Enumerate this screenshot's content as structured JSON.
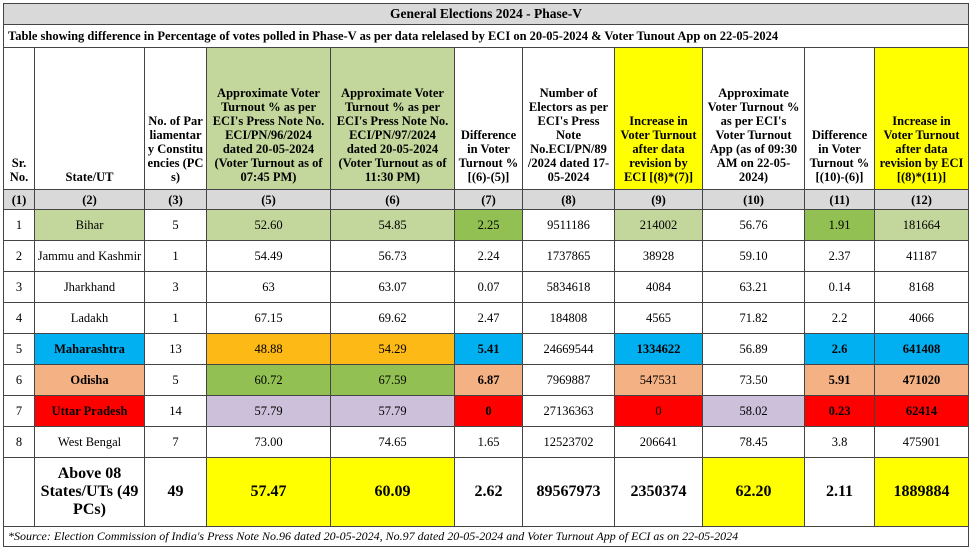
{
  "title": "General Elections 2024 - Phase-V",
  "subtitle": "Table showing difference in Percentage of votes polled in Phase-V as per data relelased by ECI on 20-05-2024 & Voter Tunout App on 22-05-2024",
  "headers": [
    "Sr. No.",
    "State/UT",
    "No. of Parliamentary Constituencies (PCs)",
    "Approximate Voter Turnout % as per ECI's Press Note No. ECI/PN/96/2024 dated 20-05-2024 (Voter Turnout as of 07:45 PM)",
    "Approximate Voter Turnout % as per ECI's Press Note No. ECI/PN/97/2024 dated 20-05-2024 (Voter Turnout as of 11:30 PM)",
    "Difference in Voter Turnout % [(6)-(5)]",
    "Number of Electors as per ECI's Press Note No.ECI/PN/89 /2024 dated 17-05-2024",
    "Increase in Voter Turnout after data revision by ECI [(8)*(7)]",
    "Approximate Voter Turnout % as per ECI's Voter Turnout App (as of 09:30 AM on 22-05-2024)",
    "Difference in Voter Turnout % [(10)-(6)]",
    "Increase in Voter Turnout after data revision by ECI [(8)*(11)]"
  ],
  "col_numbers": [
    "(1)",
    "(2)",
    "(3)",
    "(5)",
    "(6)",
    "(7)",
    "(8)",
    "(9)",
    "(10)",
    "(11)",
    "(12)"
  ],
  "rows": [
    [
      "1",
      "Bihar",
      "5",
      "52.60",
      "54.85",
      "2.25",
      "9511186",
      "214002",
      "56.76",
      "1.91",
      "181664"
    ],
    [
      "2",
      "Jammu and Kashmir",
      "1",
      "54.49",
      "56.73",
      "2.24",
      "1737865",
      "38928",
      "59.10",
      "2.37",
      "41187"
    ],
    [
      "3",
      "Jharkhand",
      "3",
      "63",
      "63.07",
      "0.07",
      "5834618",
      "4084",
      "63.21",
      "0.14",
      "8168"
    ],
    [
      "4",
      "Ladakh",
      "1",
      "67.15",
      "69.62",
      "2.47",
      "184808",
      "4565",
      "71.82",
      "2.2",
      "4066"
    ],
    [
      "5",
      "Maharashtra",
      "13",
      "48.88",
      "54.29",
      "5.41",
      "24669544",
      "1334622",
      "56.89",
      "2.6",
      "641408"
    ],
    [
      "6",
      "Odisha",
      "5",
      "60.72",
      "67.59",
      "6.87",
      "7969887",
      "547531",
      "73.50",
      "5.91",
      "471020"
    ],
    [
      "7",
      "Uttar Pradesh",
      "14",
      "57.79",
      "57.79",
      "0",
      "27136363",
      "0",
      "58.02",
      "0.23",
      "62414"
    ],
    [
      "8",
      "West Bengal",
      "7",
      "73.00",
      "74.65",
      "1.65",
      "12523702",
      "206641",
      "78.45",
      "3.8",
      "475901"
    ]
  ],
  "total": [
    "",
    "Above 08 States/UTs (49 PCs)",
    "49",
    "57.47",
    "60.09",
    "2.62",
    "89567973",
    "2350374",
    "62.20",
    "2.11",
    "1889884"
  ],
  "source": "*Source: Election Commission of India's Press Note No.96 dated 20-05-2024, No.97 dated 20-05-2024 and Voter Turnout App of ECI as on 22-05-2024",
  "colors": {
    "light_green": "#c3d69b",
    "green": "#92c052",
    "orange": "#fdb915",
    "blue": "#00b0f0",
    "peach": "#f4b183",
    "red": "#ff0000",
    "lavender": "#ccc0da",
    "yellow": "#ffff00",
    "header_gray": "#d9d9d9"
  }
}
